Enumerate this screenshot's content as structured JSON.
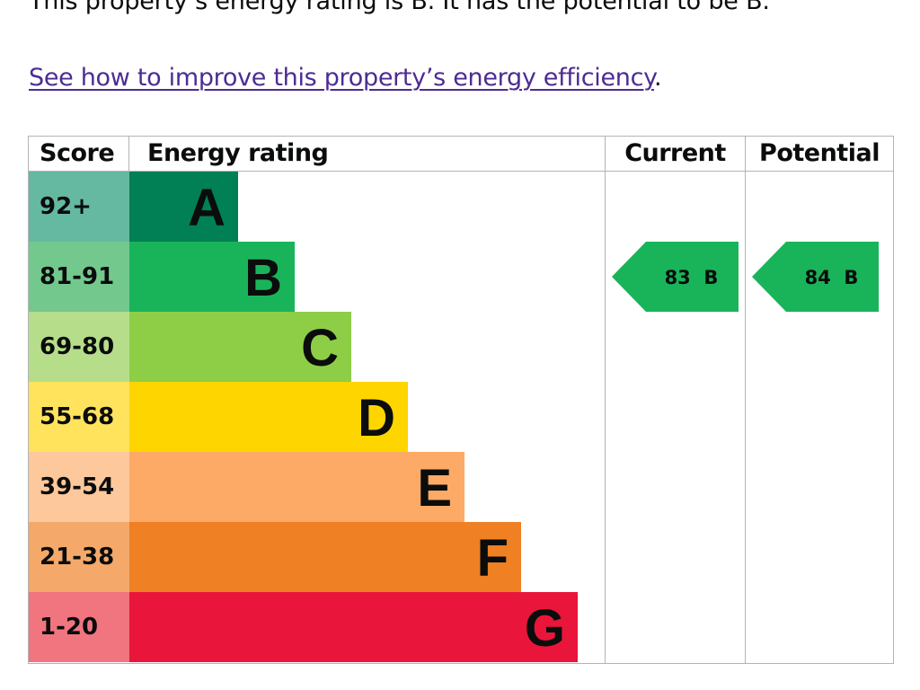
{
  "intro": {
    "text": "This property’s energy rating is B. It has the potential to be B."
  },
  "improve_link": {
    "text": "See how to improve this property’s energy efficiency",
    "suffix": "."
  },
  "chart": {
    "headers": {
      "score": "Score",
      "rating": "Energy rating",
      "current": "Current",
      "potential": "Potential"
    },
    "bands": [
      {
        "score": "92+",
        "letter": "A",
        "color": "#008054",
        "score_color": "#64b9a0"
      },
      {
        "score": "81-91",
        "letter": "B",
        "color": "#19b459",
        "score_color": "#73c88e"
      },
      {
        "score": "69-80",
        "letter": "C",
        "color": "#8dce46",
        "score_color": "#b6de8a"
      },
      {
        "score": "55-68",
        "letter": "D",
        "color": "#ffd500",
        "score_color": "#ffe35c"
      },
      {
        "score": "39-54",
        "letter": "E",
        "color": "#fcaa65",
        "score_color": "#fdc89b"
      },
      {
        "score": "21-38",
        "letter": "F",
        "color": "#ef8023",
        "score_color": "#f4a96a"
      },
      {
        "score": "1-20",
        "letter": "G",
        "color": "#e9153b",
        "score_color": "#f0757f"
      }
    ],
    "current": {
      "score": "83",
      "letter": "B",
      "band": "B",
      "color": "#19b459"
    },
    "potential": {
      "score": "84",
      "letter": "B",
      "band": "B",
      "color": "#19b459"
    }
  },
  "chart_data": {
    "type": "bar",
    "categories": [
      "A",
      "B",
      "C",
      "D",
      "E",
      "F",
      "G"
    ],
    "score_ranges": [
      "92+",
      "81-91",
      "69-80",
      "55-68",
      "39-54",
      "21-38",
      "1-20"
    ],
    "current": {
      "score": 83,
      "band": "B"
    },
    "potential": {
      "score": 84,
      "band": "B"
    },
    "xlabel": "",
    "ylabel": ""
  }
}
